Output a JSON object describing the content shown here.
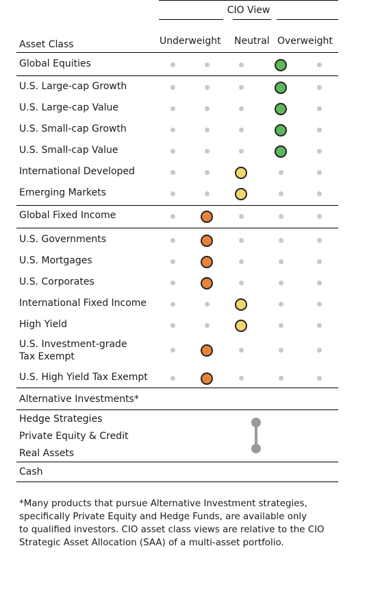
{
  "header": {
    "cio_view": "CIO View",
    "asset_class": "Asset Class",
    "underweight": "Underweight",
    "neutral": "Neutral",
    "overweight": "Overweight"
  },
  "columns": [
    "Underweight 2",
    "Underweight 1",
    "Neutral",
    "Overweight 1",
    "Overweight 2"
  ],
  "rows": [
    {
      "label": "Global Equities",
      "view_index": 3,
      "color": "green"
    },
    {
      "label": "U.S. Large-cap Growth",
      "view_index": 3,
      "color": "green"
    },
    {
      "label": "U.S. Large-cap Value",
      "view_index": 3,
      "color": "green"
    },
    {
      "label": "U.S. Small-cap Growth",
      "view_index": 3,
      "color": "green"
    },
    {
      "label": "U.S. Small-cap Value",
      "view_index": 3,
      "color": "green"
    },
    {
      "label": "International Developed",
      "view_index": 2,
      "color": "yellow"
    },
    {
      "label": "Emerging Markets",
      "view_index": 2,
      "color": "yellow"
    },
    {
      "label": "Global Fixed Income",
      "view_index": 1,
      "color": "orange"
    },
    {
      "label": "U.S. Governments",
      "view_index": 1,
      "color": "orange"
    },
    {
      "label": "U.S. Mortgages",
      "view_index": 1,
      "color": "orange"
    },
    {
      "label": "U.S. Corporates",
      "view_index": 1,
      "color": "orange"
    },
    {
      "label": "International Fixed Income",
      "view_index": 2,
      "color": "yellow"
    },
    {
      "label": "High Yield",
      "view_index": 2,
      "color": "yellow"
    },
    {
      "label": "U.S. Investment-grade",
      "label2": "Tax Exempt",
      "view_index": 1,
      "color": "orange"
    },
    {
      "label": "U.S. High Yield Tax Exempt",
      "view_index": 1,
      "color": "orange"
    }
  ],
  "alternatives": {
    "title": "Alternative Investments*",
    "items": [
      "Hedge Strategies",
      "Private Equity & Credit",
      "Real Assets"
    ],
    "range": "Neutral"
  },
  "cash": "Cash",
  "colors": {
    "green": "#5cb85c",
    "yellow": "#f2d56b",
    "orange": "#e8833a",
    "neutral_dot": "#c8c8c8",
    "range": "#9a9a9a"
  },
  "footnote": {
    "line1": "*Many products that pursue Alternative Investment strategies,",
    "line2": "specifically Private Equity and Hedge Funds, are available only",
    "line3": "to qualified investors. CIO asset class views are relative to the CIO",
    "line4": "Strategic Asset Allocation (SAA) of a multi-asset portfolio."
  }
}
